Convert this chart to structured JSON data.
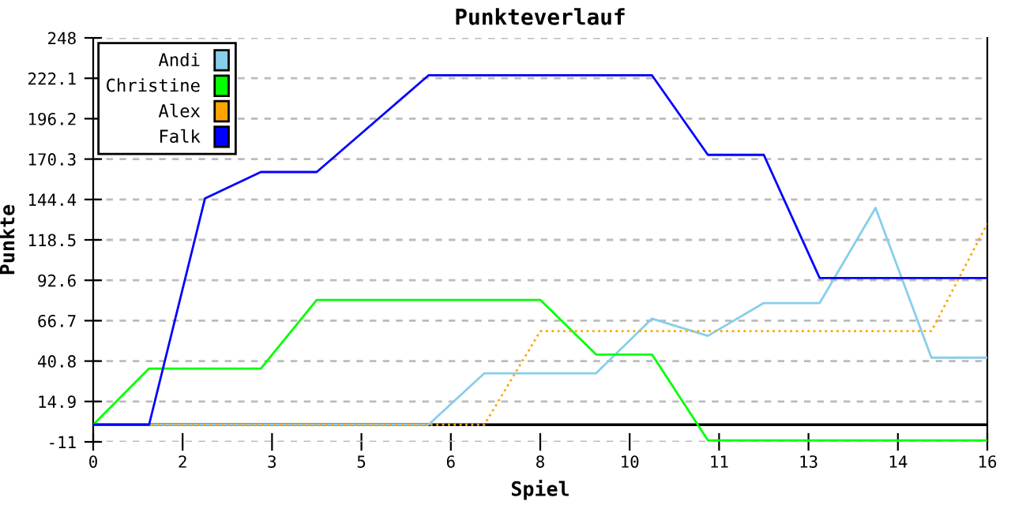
{
  "chart_data": {
    "type": "line",
    "title": "Punkteverlauf",
    "xlabel": "Spiel",
    "ylabel": "Punkte",
    "x": [
      0,
      1,
      2,
      3,
      4,
      5,
      6,
      7,
      8,
      9,
      10,
      11,
      12,
      13,
      14,
      15,
      16
    ],
    "series": [
      {
        "name": "Andi",
        "color": "#87ceeb",
        "line_style": "solid",
        "values": [
          0,
          0,
          0,
          0,
          0,
          0,
          0,
          33,
          33,
          33,
          68,
          57,
          78,
          78,
          139,
          43,
          43
        ]
      },
      {
        "name": "Christine",
        "color": "#00ff00",
        "line_style": "solid",
        "values": [
          0,
          36,
          36,
          36,
          80,
          80,
          80,
          80,
          80,
          45,
          45,
          -10,
          -10,
          -10,
          -10,
          -10,
          -10
        ]
      },
      {
        "name": "Alex",
        "color": "#ffa500",
        "line_style": "dotted",
        "values": [
          0,
          0,
          0,
          0,
          0,
          0,
          0,
          0,
          60,
          60,
          60,
          60,
          60,
          60,
          60,
          60,
          129
        ]
      },
      {
        "name": "Falk",
        "color": "#0000ff",
        "line_style": "solid",
        "values": [
          0,
          0,
          145,
          162,
          162,
          193,
          224,
          224,
          224,
          224,
          224,
          173,
          173,
          94,
          94,
          94,
          94
        ]
      }
    ],
    "xlim": [
      0,
      16
    ],
    "xticks": [
      0,
      {
        "value": 1.6,
        "label": "2"
      },
      {
        "value": 3.2,
        "label": "3"
      },
      {
        "value": 4.8,
        "label": "5"
      },
      {
        "value": 6.4,
        "label": "6"
      },
      8,
      {
        "value": 9.6,
        "label": "10"
      },
      {
        "value": 11.2,
        "label": "11"
      },
      {
        "value": 12.8,
        "label": "13"
      },
      {
        "value": 14.4,
        "label": "14"
      },
      16
    ],
    "ylim": [
      -11,
      248
    ],
    "yticks": [
      -11,
      14.9,
      40.8,
      66.7,
      92.6,
      118.5,
      144.4,
      170.3,
      196.2,
      222.1,
      248
    ],
    "ref_lines": [
      {
        "axis": "y",
        "value": 0,
        "color": "#000000"
      }
    ],
    "grid": "y",
    "legend": "top left",
    "marker": "none"
  }
}
